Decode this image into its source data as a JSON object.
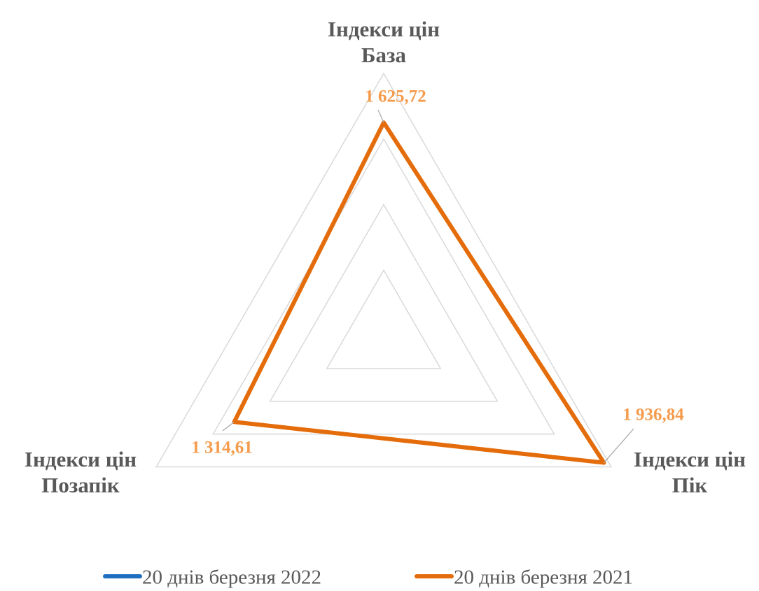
{
  "chart_data": {
    "type": "radar",
    "categories": [
      "Індекси цін База",
      "Індекси цін Пік",
      "Індекси цін Позапік"
    ],
    "series": [
      {
        "name": "20 днів березня 2022",
        "color": "#1f6fc0",
        "values": [
          null,
          null,
          null
        ]
      },
      {
        "name": "20 днів березня 2021",
        "color": "#e46c0a",
        "values": [
          1625.72,
          1936.84,
          1314.61
        ],
        "value_labels": [
          "1 625,72",
          "1 936,84",
          "1 314,61"
        ]
      }
    ],
    "ylim": [
      0,
      2000
    ],
    "yticks": [
      0,
      500,
      1000,
      1500,
      2000
    ],
    "grid": true
  }
}
